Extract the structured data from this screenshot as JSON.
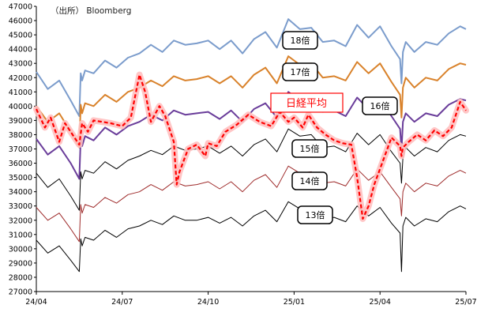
{
  "chart_data": {
    "type": "line",
    "title": "",
    "source_note": "（出所） Bloomberg",
    "xlabel": "",
    "ylabel": "",
    "ylim": [
      27000,
      47000
    ],
    "ytick_step": 1000,
    "x_ticks": [
      "24/04",
      "24/07",
      "24/10",
      "25/01",
      "25/04",
      "25/07"
    ],
    "x_range_months": [
      0,
      15
    ],
    "grid": false,
    "colors": {
      "18x": "#7b9ccc",
      "17x": "#d9822b",
      "16x": "#6a3d9a",
      "15x": "#000000",
      "14x": "#9e2a2a",
      "13x": "#000000",
      "nikkei": "#ff0000",
      "nikkei_glow": "#ffc0c0"
    },
    "series": [
      {
        "key": "18x",
        "name": "18倍",
        "x": [
          0,
          0.4,
          0.8,
          1.2,
          1.5,
          1.55,
          1.6,
          1.7,
          2.0,
          2.4,
          2.8,
          3.2,
          3.6,
          4.0,
          4.4,
          4.8,
          5.2,
          5.6,
          6.0,
          6.4,
          6.8,
          7.2,
          7.6,
          8.0,
          8.4,
          8.8,
          9.2,
          9.6,
          10.0,
          10.4,
          10.8,
          11.2,
          11.6,
          12.0,
          12.4,
          12.7,
          12.75,
          12.8,
          12.9,
          13.2,
          13.6,
          14.0,
          14.4,
          14.8,
          15.0
        ],
        "values": [
          42400,
          41200,
          41800,
          40400,
          39300,
          42300,
          41800,
          42500,
          42300,
          43200,
          42700,
          43400,
          43700,
          44300,
          43800,
          44600,
          44300,
          44400,
          44600,
          44000,
          44600,
          43700,
          44700,
          45200,
          44100,
          46100,
          45400,
          45500,
          44500,
          44600,
          44200,
          45700,
          44800,
          45600,
          44200,
          43300,
          41600,
          43800,
          44500,
          43800,
          44500,
          44300,
          45100,
          45600,
          45400
        ]
      },
      {
        "key": "17x",
        "name": "17倍",
        "x": [
          0,
          0.4,
          0.8,
          1.2,
          1.5,
          1.55,
          1.6,
          1.7,
          2.0,
          2.4,
          2.8,
          3.2,
          3.6,
          4.0,
          4.4,
          4.8,
          5.2,
          5.6,
          6.0,
          6.4,
          6.8,
          7.2,
          7.6,
          8.0,
          8.4,
          8.8,
          9.2,
          9.6,
          10.0,
          10.4,
          10.8,
          11.2,
          11.6,
          12.0,
          12.4,
          12.7,
          12.75,
          12.8,
          12.9,
          13.2,
          13.6,
          14.0,
          14.4,
          14.8,
          15.0
        ],
        "values": [
          40000,
          38900,
          39500,
          38200,
          37100,
          40100,
          39500,
          40200,
          40000,
          40800,
          40300,
          41000,
          41300,
          41800,
          41400,
          42100,
          41800,
          41900,
          42100,
          41600,
          42100,
          41300,
          42200,
          42700,
          41600,
          43500,
          42900,
          43000,
          42000,
          42100,
          41800,
          43100,
          42300,
          43000,
          41700,
          40800,
          39200,
          41300,
          42000,
          41300,
          42000,
          41800,
          42600,
          43000,
          42900
        ]
      },
      {
        "key": "16x",
        "name": "16倍",
        "x": [
          0,
          0.4,
          0.8,
          1.2,
          1.5,
          1.55,
          1.6,
          1.7,
          2.0,
          2.4,
          2.8,
          3.2,
          3.6,
          4.0,
          4.4,
          4.8,
          5.2,
          5.6,
          6.0,
          6.4,
          6.8,
          7.2,
          7.6,
          8.0,
          8.4,
          8.8,
          9.2,
          9.6,
          10.0,
          10.4,
          10.8,
          11.2,
          11.6,
          12.0,
          12.4,
          12.7,
          12.75,
          12.8,
          12.9,
          13.2,
          13.6,
          14.0,
          14.4,
          14.8,
          15.0
        ],
        "values": [
          37700,
          36600,
          37200,
          36000,
          34900,
          37800,
          37200,
          37900,
          37600,
          38500,
          38000,
          38600,
          38900,
          39400,
          39000,
          39700,
          39400,
          39500,
          39600,
          39100,
          39700,
          38900,
          39800,
          40200,
          39200,
          41000,
          40400,
          40500,
          39600,
          39700,
          39300,
          40600,
          39800,
          40500,
          39300,
          38400,
          36900,
          38900,
          39500,
          38900,
          39500,
          39300,
          40100,
          40500,
          40400
        ]
      },
      {
        "key": "15x",
        "name": "15倍",
        "x": [
          0,
          0.4,
          0.8,
          1.2,
          1.5,
          1.55,
          1.6,
          1.7,
          2.0,
          2.4,
          2.8,
          3.2,
          3.6,
          4.0,
          4.4,
          4.8,
          5.2,
          5.6,
          6.0,
          6.4,
          6.8,
          7.2,
          7.6,
          8.0,
          8.4,
          8.8,
          9.2,
          9.6,
          10.0,
          10.4,
          10.8,
          11.2,
          11.6,
          12.0,
          12.4,
          12.7,
          12.75,
          12.8,
          12.9,
          13.2,
          13.6,
          14.0,
          14.4,
          14.8,
          15.0
        ],
        "values": [
          35300,
          34300,
          34900,
          33700,
          32700,
          35400,
          34900,
          35500,
          35300,
          36100,
          35600,
          36200,
          36500,
          36900,
          36600,
          37200,
          36900,
          37000,
          37200,
          36700,
          37200,
          36500,
          37300,
          37700,
          36800,
          38400,
          37900,
          38000,
          37100,
          37200,
          36800,
          38100,
          37300,
          38000,
          36800,
          36000,
          34600,
          36400,
          37100,
          36500,
          37100,
          36800,
          37600,
          38000,
          37900
        ]
      },
      {
        "key": "14x",
        "name": "14倍",
        "x": [
          0,
          0.4,
          0.8,
          1.2,
          1.5,
          1.55,
          1.6,
          1.7,
          2.0,
          2.4,
          2.8,
          3.2,
          3.6,
          4.0,
          4.4,
          4.8,
          5.2,
          5.6,
          6.0,
          6.4,
          6.8,
          7.2,
          7.6,
          8.0,
          8.4,
          8.8,
          9.2,
          9.6,
          10.0,
          10.4,
          10.8,
          11.2,
          11.6,
          12.0,
          12.4,
          12.7,
          12.75,
          12.8,
          12.9,
          13.2,
          13.6,
          14.0,
          14.4,
          14.8,
          15.0
        ],
        "values": [
          32900,
          32000,
          32500,
          31400,
          30500,
          33100,
          32500,
          33100,
          32900,
          33600,
          33200,
          33800,
          34000,
          34500,
          34100,
          34700,
          34400,
          34500,
          34700,
          34200,
          34700,
          34000,
          34800,
          35200,
          34300,
          35800,
          35300,
          35400,
          34600,
          34700,
          34400,
          35600,
          34800,
          35400,
          34300,
          33500,
          32300,
          34000,
          34600,
          34000,
          34600,
          34400,
          35100,
          35500,
          35300
        ]
      },
      {
        "key": "13x",
        "name": "13倍",
        "x": [
          0,
          0.4,
          0.8,
          1.2,
          1.5,
          1.55,
          1.6,
          1.7,
          2.0,
          2.4,
          2.8,
          3.2,
          3.6,
          4.0,
          4.4,
          4.8,
          5.2,
          5.6,
          6.0,
          6.4,
          6.8,
          7.2,
          7.6,
          8.0,
          8.4,
          8.8,
          9.2,
          9.6,
          10.0,
          10.4,
          10.8,
          11.2,
          11.6,
          12.0,
          12.4,
          12.7,
          12.75,
          12.8,
          12.9,
          13.2,
          13.6,
          14.0,
          14.4,
          14.8,
          15.0
        ],
        "values": [
          30600,
          29700,
          30200,
          29200,
          28400,
          30700,
          30200,
          30800,
          30600,
          31300,
          30800,
          31400,
          31600,
          32000,
          31700,
          32300,
          32000,
          32000,
          32200,
          31800,
          32200,
          31600,
          32300,
          32700,
          31900,
          33300,
          32800,
          32900,
          32100,
          32200,
          31900,
          33000,
          32300,
          32900,
          31800,
          31100,
          28400,
          31600,
          32200,
          31600,
          32100,
          31900,
          32600,
          33000,
          32800
        ]
      },
      {
        "key": "nikkei",
        "name": "日経平均",
        "x": [
          0,
          0.3,
          0.5,
          0.8,
          1.0,
          1.2,
          1.5,
          1.6,
          1.8,
          2.0,
          2.3,
          2.6,
          3.0,
          3.3,
          3.6,
          3.8,
          4.0,
          4.3,
          4.5,
          4.8,
          4.9,
          5.0,
          5.3,
          5.6,
          5.9,
          6.0,
          6.3,
          6.6,
          7.0,
          7.4,
          7.8,
          8.2,
          8.5,
          8.8,
          9.0,
          9.3,
          9.5,
          9.8,
          10.1,
          10.4,
          10.7,
          11.0,
          11.2,
          11.4,
          11.6,
          11.8,
          12.0,
          12.4,
          12.7,
          12.75,
          12.8,
          13.0,
          13.3,
          13.6,
          13.9,
          14.2,
          14.5,
          14.8,
          15.0
        ],
        "values": [
          39800,
          38500,
          39200,
          37500,
          38800,
          38200,
          37300,
          38800,
          38200,
          39000,
          38900,
          38800,
          38600,
          39200,
          42200,
          41000,
          38900,
          40000,
          39300,
          37500,
          34500,
          35400,
          37000,
          37300,
          36500,
          37400,
          37200,
          38200,
          38700,
          39400,
          38900,
          38600,
          39600,
          38900,
          39200,
          38500,
          39400,
          38500,
          38000,
          37600,
          37400,
          37300,
          35000,
          32100,
          33000,
          34500,
          35600,
          37800,
          37200,
          36500,
          37100,
          37500,
          38000,
          37600,
          38300,
          37900,
          38500,
          40300,
          39700
        ]
      }
    ]
  },
  "labels": {
    "18x": "18倍",
    "17x": "17倍",
    "16x": "16倍",
    "15x": "15倍",
    "14x": "14倍",
    "13x": "13倍",
    "nikkei": "日経平均"
  }
}
